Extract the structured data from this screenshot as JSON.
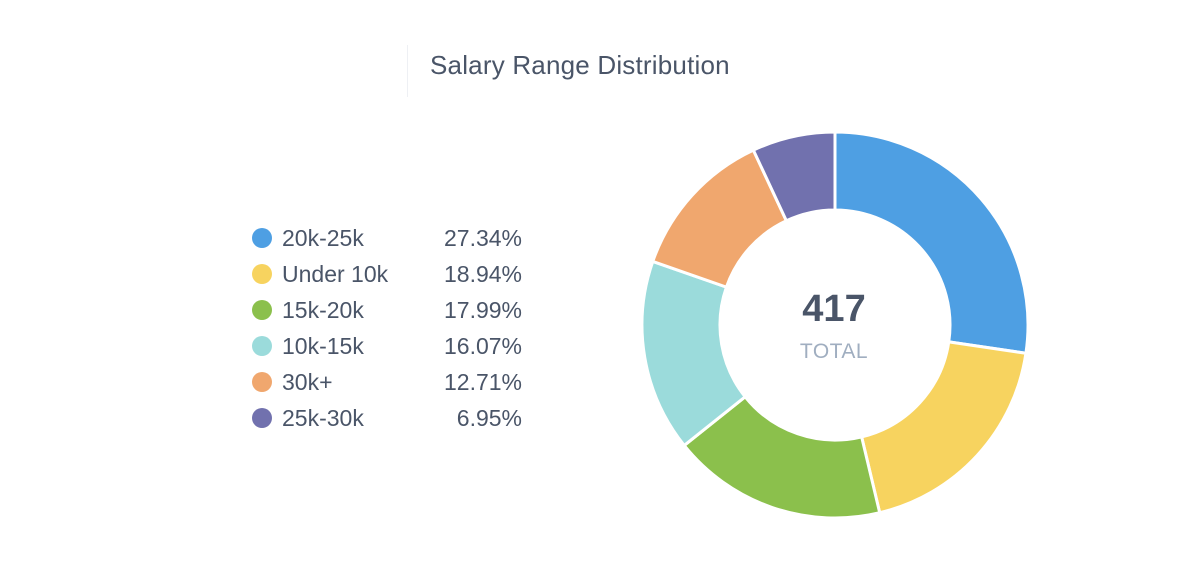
{
  "chart_data": {
    "type": "pie",
    "title": "Salary Range Distribution",
    "categories": [
      "20k-25k",
      "Under 10k",
      "15k-20k",
      "10k-15k",
      "30k+",
      "25k-30k"
    ],
    "values": [
      27.34,
      18.94,
      17.99,
      16.07,
      12.71,
      6.95
    ],
    "value_labels": [
      "27.34%",
      "18.94%",
      "17.99%",
      "16.07%",
      "12.71%",
      "6.95%"
    ],
    "colors": [
      "#4e9fe3",
      "#f7d35f",
      "#8bc04c",
      "#9bdbdb",
      "#f0a76e",
      "#7171ae"
    ],
    "center_total": "417",
    "center_label": "TOTAL",
    "legend_position": "left",
    "donut": true
  }
}
